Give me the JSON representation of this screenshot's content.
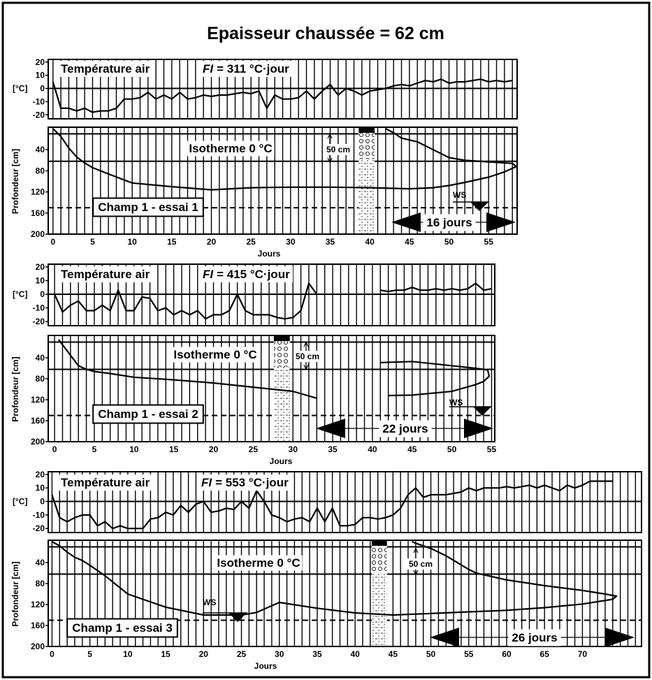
{
  "title": "Epaisseur chaussée = 62 cm",
  "chart_data": [
    {
      "type": "line",
      "label": "Température air",
      "fi_symbol": "FI",
      "fi_text": "= 311 °C·jour",
      "ylabel": "[°C]",
      "xlim": [
        -0.6,
        58.6
      ],
      "ylim": [
        -23,
        22
      ],
      "yticks": [
        -20,
        -10,
        0,
        10,
        20
      ],
      "hlines": [
        0
      ],
      "xgrid": [
        0,
        1,
        2,
        3,
        4,
        5,
        6,
        7,
        8,
        9,
        10,
        11,
        12,
        13,
        14,
        15,
        16,
        17,
        18,
        19,
        20,
        21,
        22,
        23,
        24,
        25,
        26,
        27,
        28,
        29,
        30,
        31,
        32,
        33,
        34,
        35,
        36,
        37,
        38,
        39,
        40,
        41,
        42,
        43,
        44,
        45,
        46,
        47,
        48,
        49,
        50,
        51,
        52,
        53,
        54,
        55,
        56,
        57,
        58
      ],
      "series": [
        {
          "color": "#000000",
          "x": [
            0,
            1,
            2,
            3,
            4,
            5,
            6,
            7,
            8,
            9,
            10,
            11,
            12,
            13,
            14,
            15,
            16,
            17,
            18,
            19,
            20,
            21,
            22,
            23,
            24,
            25,
            26,
            27,
            28,
            29,
            30,
            31,
            32,
            33,
            34,
            35,
            36,
            37,
            38,
            39,
            40,
            41,
            42,
            43,
            44,
            45,
            46,
            47,
            48,
            49,
            50,
            51,
            52,
            53,
            54,
            55,
            56,
            57,
            58
          ],
          "values": [
            5,
            -15,
            -15,
            -17,
            -15,
            -18,
            -17,
            -17,
            -15,
            -8,
            -8,
            -7,
            -3,
            -8,
            -5,
            -8,
            -3,
            -8,
            -7,
            -5,
            -6,
            -5,
            -5,
            -4,
            -3,
            -4,
            -2,
            -15,
            -5,
            -8,
            -8,
            -7,
            -2,
            -8,
            -2,
            3,
            -5,
            0,
            -2,
            -5,
            -2,
            -1,
            0,
            2,
            3,
            2,
            4,
            6,
            5,
            7,
            4,
            5,
            5,
            6,
            7,
            5,
            6,
            5,
            6
          ]
        }
      ]
    },
    {
      "type": "line",
      "label": "Isotherme 0 °C",
      "ylabel": "Profondeur  [cm]",
      "xlabel": "Jours",
      "core_label": "50 cm",
      "field_label": "Champ 1 - essai 1",
      "duration_label": "16 jours",
      "ws_label": "WS",
      "xlim": [
        -0.6,
        58.6
      ],
      "ylim": [
        0,
        200
      ],
      "y_inverted": true,
      "yticks": [
        40,
        80,
        120,
        160,
        200
      ],
      "xticks": [
        0,
        5,
        10,
        15,
        20,
        25,
        30,
        35,
        40,
        45,
        50,
        55
      ],
      "hlines": [
        10,
        62
      ],
      "dashed_hlines": [
        150
      ],
      "xgrid": [
        0,
        1,
        2,
        3,
        4,
        5,
        6,
        7,
        8,
        9,
        10,
        11,
        12,
        13,
        14,
        15,
        16,
        17,
        18,
        19,
        20,
        21,
        22,
        23,
        24,
        25,
        26,
        27,
        28,
        29,
        30,
        31,
        32,
        33,
        34,
        35,
        36,
        37,
        38,
        39,
        40,
        41,
        42,
        43,
        44,
        45,
        46,
        47,
        48,
        49,
        50,
        51,
        52,
        53,
        54,
        55,
        56,
        57,
        58
      ],
      "series": [
        {
          "color": "#000000",
          "x": [
            0,
            1,
            2,
            3,
            4,
            5,
            7,
            10,
            15,
            20,
            25,
            30,
            35,
            40,
            45,
            48,
            50,
            52,
            55,
            57,
            58.5,
            58,
            55,
            52,
            50,
            48,
            46,
            44,
            43,
            42
          ],
          "values": [
            0,
            15,
            37,
            54,
            65,
            74,
            86,
            103,
            110,
            116,
            112,
            111,
            111,
            112,
            114,
            112,
            108,
            102,
            92,
            82,
            72,
            66,
            63,
            60,
            55,
            40,
            25,
            18,
            8,
            0
          ]
        }
      ]
    },
    {
      "type": "line",
      "label": "Température air",
      "fi_symbol": "FI",
      "fi_text": "= 415 °C·jour",
      "ylabel": "[°C]",
      "xlim": [
        -0.8,
        55.4
      ],
      "ylim": [
        -23,
        22
      ],
      "yticks": [
        -20,
        -10,
        0,
        10,
        20
      ],
      "hlines": [
        0
      ],
      "xgrid": [
        0,
        1,
        2,
        3,
        4,
        5,
        6,
        7,
        8,
        9,
        10,
        11,
        12,
        13,
        14,
        15,
        16,
        17,
        18,
        19,
        20,
        21,
        22,
        23,
        24,
        25,
        26,
        27,
        28,
        29,
        30,
        31,
        32,
        33,
        34,
        35,
        36,
        37,
        38,
        39,
        40,
        41,
        42,
        43,
        44,
        45,
        46,
        47,
        48,
        49,
        50,
        51,
        52,
        53,
        54,
        55
      ],
      "series": [
        {
          "color": "#000000",
          "x": [
            0,
            1,
            2,
            3,
            4,
            5,
            6,
            7,
            8,
            9,
            10,
            11,
            12,
            13,
            14,
            15,
            16,
            17,
            18,
            19,
            20,
            21,
            22,
            23,
            24,
            25,
            26,
            27,
            28,
            29,
            30,
            31,
            32,
            33,
            null,
            41,
            42,
            43,
            44,
            45,
            46,
            47,
            48,
            49,
            50,
            51,
            52,
            53,
            54,
            55
          ],
          "values": [
            0,
            -13,
            -8,
            -5,
            -12,
            -12,
            -8,
            -12,
            3,
            -12,
            -12,
            -2,
            -3,
            -12,
            -10,
            -15,
            -12,
            -15,
            -12,
            -18,
            -15,
            -15,
            -12,
            0,
            -12,
            -15,
            -15,
            -15,
            -17,
            -18,
            -17,
            -12,
            8,
            0,
            null,
            3,
            2,
            3,
            3,
            5,
            3,
            3,
            4,
            3,
            4,
            3,
            4,
            8,
            3,
            4
          ]
        }
      ]
    },
    {
      "type": "line",
      "label": "Isotherme 0 °C",
      "ylabel": "Profondeur  [cm]",
      "xlabel": "Jours",
      "core_label": "50 cm",
      "field_label": "Champ 1 - essai 2",
      "duration_label": "22 jours",
      "ws_label": "WS",
      "xlim": [
        -0.8,
        55.4
      ],
      "ylim": [
        0,
        200
      ],
      "y_inverted": true,
      "yticks": [
        40,
        80,
        120,
        160,
        200
      ],
      "xticks": [
        0,
        5,
        10,
        15,
        20,
        25,
        30,
        35,
        40,
        45,
        50,
        55
      ],
      "hlines": [
        10,
        62
      ],
      "dashed_hlines": [
        150
      ],
      "xgrid": [
        0,
        1,
        2,
        3,
        4,
        5,
        6,
        7,
        8,
        9,
        10,
        11,
        12,
        13,
        14,
        15,
        16,
        17,
        18,
        19,
        20,
        21,
        22,
        23,
        24,
        25,
        26,
        27,
        28,
        29,
        30,
        31,
        32,
        33,
        34,
        35,
        36,
        37,
        38,
        39,
        40,
        41,
        42,
        43,
        44,
        45,
        46,
        47,
        48,
        49,
        50,
        51,
        52,
        53,
        54,
        55
      ],
      "series": [
        {
          "color": "#000000",
          "x": [
            0.5,
            1,
            2,
            3,
            4,
            5,
            7,
            10,
            15,
            20,
            25,
            30,
            33,
            null,
            41,
            45,
            50,
            53,
            54.5,
            54.7,
            54,
            53,
            50,
            45,
            42
          ],
          "values": [
            5,
            15,
            35,
            55,
            62,
            66,
            70,
            77,
            82,
            88,
            96,
            104,
            117,
            null,
            49,
            47,
            55,
            60,
            63,
            75,
            85,
            91,
            104,
            111,
            112
          ]
        }
      ]
    },
    {
      "type": "line",
      "label": "Température air",
      "fi_symbol": "FI",
      "fi_text": "= 553 °C·jour",
      "ylabel": "[°C]",
      "xlim": [
        -0.5,
        77.8
      ],
      "ylim": [
        -23,
        22
      ],
      "yticks": [
        -20,
        -10,
        0,
        10,
        20
      ],
      "hlines": [
        0
      ],
      "xgrid": [
        0,
        1,
        2,
        3,
        4,
        5,
        6,
        7,
        8,
        9,
        10,
        11,
        12,
        13,
        14,
        15,
        16,
        17,
        18,
        19,
        20,
        21,
        22,
        23,
        24,
        25,
        26,
        27,
        28,
        29,
        30,
        31,
        32,
        33,
        34,
        35,
        36,
        37,
        38,
        39,
        40,
        41,
        42,
        43,
        44,
        45,
        46,
        47,
        48,
        49,
        50,
        51,
        52,
        53,
        54,
        55,
        56,
        57,
        58,
        59,
        60,
        61,
        62,
        63,
        64,
        65,
        66,
        67,
        68,
        69,
        70,
        71,
        72,
        73,
        74,
        75,
        76,
        77
      ],
      "series": [
        {
          "color": "#000000",
          "x": [
            0,
            1,
            2,
            3,
            4,
            5,
            6,
            7,
            8,
            9,
            10,
            11,
            12,
            13,
            14,
            15,
            16,
            17,
            18,
            19,
            20,
            21,
            22,
            23,
            24,
            25,
            26,
            27,
            28,
            29,
            30,
            31,
            32,
            33,
            34,
            35,
            36,
            37,
            38,
            39,
            40,
            41,
            42,
            43,
            44,
            45,
            46,
            47,
            48,
            49,
            50,
            51,
            52,
            53,
            54,
            55,
            56,
            57,
            58,
            59,
            60,
            61,
            62,
            63,
            64,
            65,
            66,
            67,
            68,
            69,
            70,
            71,
            72,
            73,
            74
          ],
          "values": [
            5,
            -12,
            -15,
            -12,
            -10,
            -10,
            -18,
            -15,
            -20,
            -18,
            -20,
            -20,
            -20,
            -13,
            -12,
            -8,
            -10,
            -3,
            -8,
            -2,
            0,
            -8,
            -7,
            -5,
            -6,
            0,
            -5,
            8,
            0,
            -10,
            -12,
            -15,
            -13,
            -12,
            -15,
            -5,
            -15,
            -5,
            -18,
            -18,
            -17,
            -12,
            -12,
            -13,
            -12,
            -10,
            -5,
            5,
            10,
            3,
            5,
            5,
            5,
            6,
            7,
            10,
            8,
            10,
            10,
            10,
            11,
            10,
            11,
            12,
            10,
            12,
            10,
            8,
            12,
            10,
            12,
            15,
            15,
            15,
            15
          ]
        }
      ]
    },
    {
      "type": "line",
      "label": "Isotherme 0 °C",
      "ylabel": "Profondeur  [cm]",
      "xlabel": "Jours",
      "core_label": "50 cm",
      "field_label": "Champ 1 - essai 3",
      "duration_label": "26 jours",
      "ws_label": "WS",
      "xlim": [
        -0.5,
        77.8
      ],
      "ylim": [
        0,
        200
      ],
      "y_inverted": true,
      "yticks": [
        40,
        80,
        120,
        160,
        200
      ],
      "xticks": [
        0,
        5,
        10,
        15,
        20,
        25,
        30,
        35,
        40,
        45,
        50,
        55,
        60,
        65,
        70
      ],
      "hlines": [
        10,
        62
      ],
      "dashed_hlines": [
        150
      ],
      "xgrid": [
        0,
        1,
        2,
        3,
        4,
        5,
        6,
        7,
        8,
        9,
        10,
        11,
        12,
        13,
        14,
        15,
        16,
        17,
        18,
        19,
        20,
        21,
        22,
        23,
        24,
        25,
        26,
        27,
        28,
        29,
        30,
        31,
        32,
        33,
        34,
        35,
        36,
        37,
        38,
        39,
        40,
        41,
        42,
        43,
        44,
        45,
        46,
        47,
        48,
        49,
        50,
        51,
        52,
        53,
        54,
        55,
        56,
        57,
        58,
        59,
        60,
        61,
        62,
        63,
        64,
        65,
        66,
        67,
        68,
        69,
        70,
        71,
        72,
        73,
        74,
        75,
        76,
        77
      ],
      "series": [
        {
          "color": "#000000",
          "x": [
            0,
            1,
            2,
            3,
            4,
            5,
            7,
            10,
            15,
            20,
            25,
            27,
            30,
            35,
            40,
            45,
            50,
            55,
            60,
            65,
            70,
            74,
            74.5,
            73,
            70,
            65,
            60,
            56,
            55,
            52,
            50,
            48,
            47.5
          ],
          "values": [
            0,
            8,
            20,
            30,
            36,
            45,
            65,
            100,
            125,
            140,
            140,
            135,
            116,
            127,
            136,
            140,
            137,
            134,
            131,
            126,
            119,
            110,
            104,
            100,
            93,
            84,
            73,
            60,
            53,
            27,
            13,
            3,
            0
          ]
        }
      ]
    }
  ]
}
